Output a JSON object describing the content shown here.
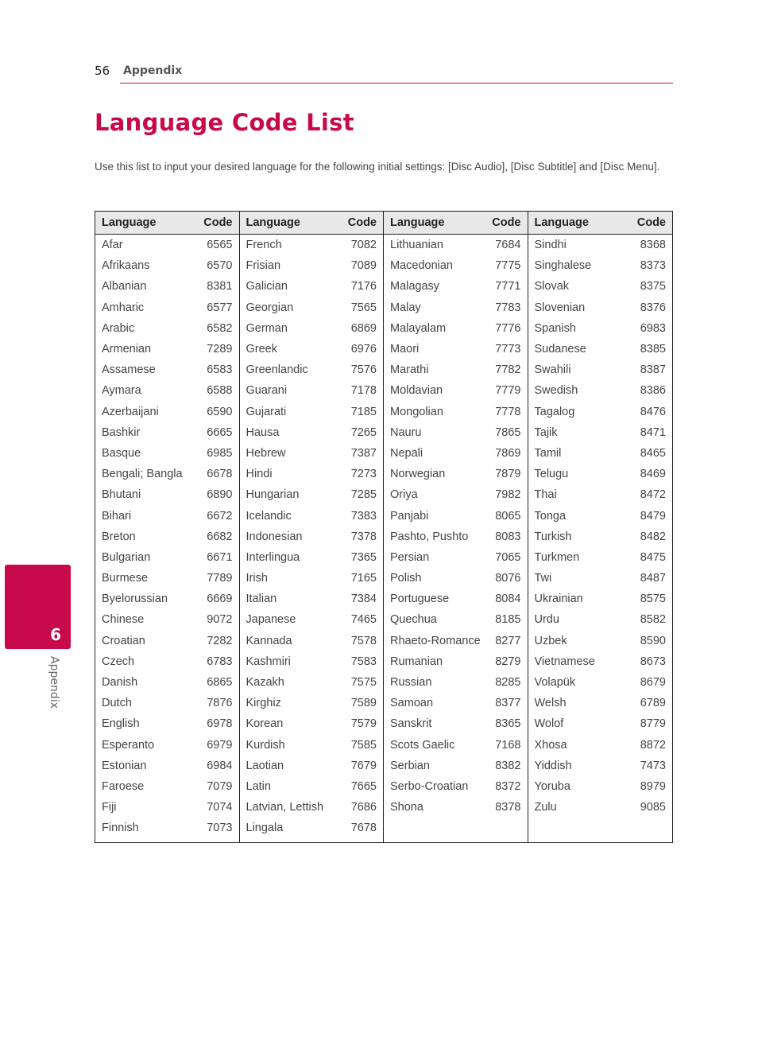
{
  "header": {
    "page_number": "56",
    "section": "Appendix"
  },
  "title": "Language Code List",
  "intro": "Use this list to input your desired language for the following initial settings: [Disc Audio], [Disc Subtitle] and [Disc Menu].",
  "side_tab": {
    "number": "6",
    "label": "Appendix",
    "color": "#c8094b"
  },
  "table": {
    "headers": {
      "language": "Language",
      "code": "Code"
    },
    "columns": [
      [
        [
          "Afar",
          "6565"
        ],
        [
          "Afrikaans",
          "6570"
        ],
        [
          "Albanian",
          "8381"
        ],
        [
          "Amharic",
          "6577"
        ],
        [
          "Arabic",
          "6582"
        ],
        [
          "Armenian",
          "7289"
        ],
        [
          "Assamese",
          "6583"
        ],
        [
          "Aymara",
          "6588"
        ],
        [
          "Azerbaijani",
          "6590"
        ],
        [
          "Bashkir",
          "6665"
        ],
        [
          "Basque",
          "6985"
        ],
        [
          "Bengali; Bangla",
          "6678"
        ],
        [
          "Bhutani",
          "6890"
        ],
        [
          "Bihari",
          "6672"
        ],
        [
          "Breton",
          "6682"
        ],
        [
          "Bulgarian",
          "6671"
        ],
        [
          "Burmese",
          "7789"
        ],
        [
          "Byelorussian",
          "6669"
        ],
        [
          "Chinese",
          "9072"
        ],
        [
          "Croatian",
          "7282"
        ],
        [
          "Czech",
          "6783"
        ],
        [
          "Danish",
          "6865"
        ],
        [
          "Dutch",
          "7876"
        ],
        [
          "English",
          "6978"
        ],
        [
          "Esperanto",
          "6979"
        ],
        [
          "Estonian",
          "6984"
        ],
        [
          "Faroese",
          "7079"
        ],
        [
          "Fiji",
          "7074"
        ],
        [
          "Finnish",
          "7073"
        ]
      ],
      [
        [
          "French",
          "7082"
        ],
        [
          "Frisian",
          "7089"
        ],
        [
          "Galician",
          "7176"
        ],
        [
          "Georgian",
          "7565"
        ],
        [
          "German",
          "6869"
        ],
        [
          "Greek",
          "6976"
        ],
        [
          "Greenlandic",
          "7576"
        ],
        [
          "Guarani",
          "7178"
        ],
        [
          "Gujarati",
          "7185"
        ],
        [
          "Hausa",
          "7265"
        ],
        [
          "Hebrew",
          "7387"
        ],
        [
          "Hindi",
          "7273"
        ],
        [
          "Hungarian",
          "7285"
        ],
        [
          "Icelandic",
          "7383"
        ],
        [
          "Indonesian",
          "7378"
        ],
        [
          "Interlingua",
          "7365"
        ],
        [
          "Irish",
          "7165"
        ],
        [
          "Italian",
          "7384"
        ],
        [
          "Japanese",
          "7465"
        ],
        [
          "Kannada",
          "7578"
        ],
        [
          "Kashmiri",
          "7583"
        ],
        [
          "Kazakh",
          "7575"
        ],
        [
          "Kirghiz",
          "7589"
        ],
        [
          "Korean",
          "7579"
        ],
        [
          "Kurdish",
          "7585"
        ],
        [
          "Laotian",
          "7679"
        ],
        [
          "Latin",
          "7665"
        ],
        [
          "Latvian, Lettish",
          "7686"
        ],
        [
          "Lingala",
          "7678"
        ]
      ],
      [
        [
          "Lithuanian",
          "7684"
        ],
        [
          "Macedonian",
          "7775"
        ],
        [
          "Malagasy",
          "7771"
        ],
        [
          "Malay",
          "7783"
        ],
        [
          "Malayalam",
          "7776"
        ],
        [
          "Maori",
          "7773"
        ],
        [
          "Marathi",
          "7782"
        ],
        [
          "Moldavian",
          "7779"
        ],
        [
          "Mongolian",
          "7778"
        ],
        [
          "Nauru",
          "7865"
        ],
        [
          "Nepali",
          "7869"
        ],
        [
          "Norwegian",
          "7879"
        ],
        [
          "Oriya",
          "7982"
        ],
        [
          "Panjabi",
          "8065"
        ],
        [
          "Pashto, Pushto",
          "8083"
        ],
        [
          "Persian",
          "7065"
        ],
        [
          "Polish",
          "8076"
        ],
        [
          "Portuguese",
          "8084"
        ],
        [
          "Quechua",
          "8185"
        ],
        [
          "Rhaeto-Romance",
          "8277"
        ],
        [
          "Rumanian",
          "8279"
        ],
        [
          "Russian",
          "8285"
        ],
        [
          "Samoan",
          "8377"
        ],
        [
          "Sanskrit",
          "8365"
        ],
        [
          "Scots Gaelic",
          "7168"
        ],
        [
          "Serbian",
          "8382"
        ],
        [
          "Serbo-Croatian",
          "8372"
        ],
        [
          "Shona",
          "8378"
        ]
      ],
      [
        [
          "Sindhi",
          "8368"
        ],
        [
          "Singhalese",
          "8373"
        ],
        [
          "Slovak",
          "8375"
        ],
        [
          "Slovenian",
          "8376"
        ],
        [
          "Spanish",
          "6983"
        ],
        [
          "Sudanese",
          "8385"
        ],
        [
          "Swahili",
          "8387"
        ],
        [
          "Swedish",
          "8386"
        ],
        [
          "Tagalog",
          "8476"
        ],
        [
          "Tajik",
          "8471"
        ],
        [
          "Tamil",
          "8465"
        ],
        [
          "Telugu",
          "8469"
        ],
        [
          "Thai",
          "8472"
        ],
        [
          "Tonga",
          "8479"
        ],
        [
          "Turkish",
          "8482"
        ],
        [
          "Turkmen",
          "8475"
        ],
        [
          "Twi",
          "8487"
        ],
        [
          "Ukrainian",
          "8575"
        ],
        [
          "Urdu",
          "8582"
        ],
        [
          "Uzbek",
          "8590"
        ],
        [
          "Vietnamese",
          "8673"
        ],
        [
          "Volapük",
          "8679"
        ],
        [
          "Welsh",
          "6789"
        ],
        [
          "Wolof",
          "8779"
        ],
        [
          "Xhosa",
          "8872"
        ],
        [
          "Yiddish",
          "7473"
        ],
        [
          "Yoruba",
          "8979"
        ],
        [
          "Zulu",
          "9085"
        ]
      ]
    ]
  }
}
